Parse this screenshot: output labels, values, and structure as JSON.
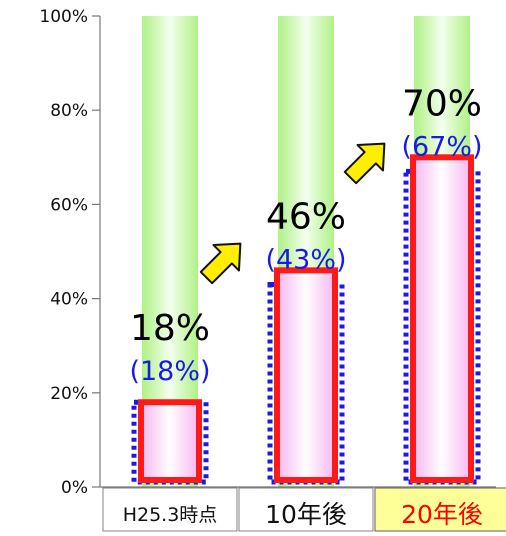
{
  "chart_data": {
    "type": "bar",
    "categories": [
      "H25.3時点",
      "10年後",
      "20年後"
    ],
    "series": [
      {
        "values": [
          18,
          46,
          70
        ]
      },
      {
        "values": [
          18,
          43,
          67
        ]
      }
    ],
    "labels_main": [
      "18%",
      "46%",
      "70%"
    ],
    "labels_sub": [
      "(18%)",
      "(43%)",
      "(67%)"
    ],
    "ylim": [
      0,
      100
    ],
    "yticks": [
      "0%",
      "20%",
      "40%",
      "60%",
      "80%",
      "100%"
    ],
    "grid": false,
    "colors": {
      "main_outline": "#ff1a1a",
      "sub_outline": "#1a1ae6",
      "background_column": "#a8f07a",
      "arrow_fill": "#ffee00",
      "highlight_category_bg": "#ffff99",
      "highlight_category_text": "#ff0000"
    },
    "highlight_category_index": 2
  }
}
